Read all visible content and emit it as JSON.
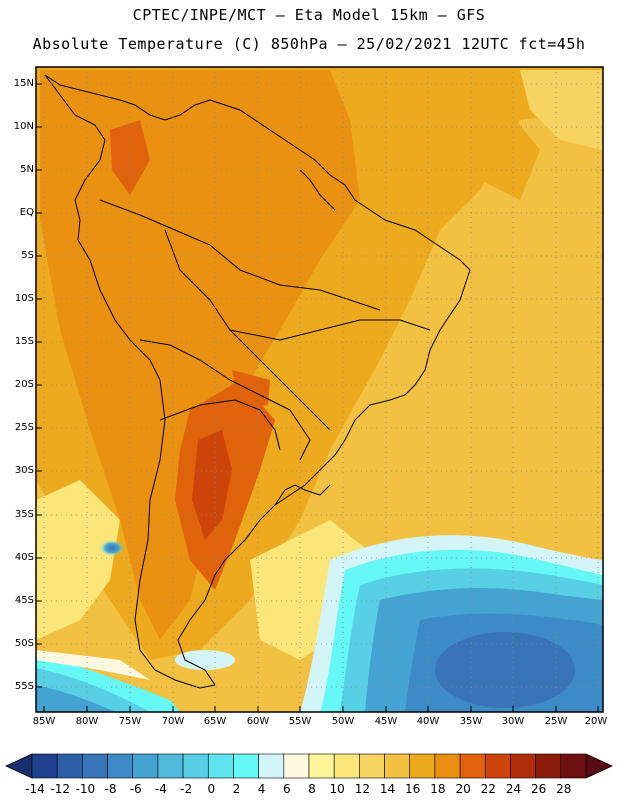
{
  "header": {
    "line1": "CPTEC/INPE/MCT –  Eta Model 15km – GFS",
    "line2": "Absolute Temperature (C) 850hPa – 25/02/2021 12UTC fct=45h"
  },
  "map": {
    "lat_labels": [
      "15N",
      "10N",
      "5N",
      "EQ",
      "5S",
      "10S",
      "15S",
      "20S",
      "25S",
      "30S",
      "35S",
      "40S",
      "45S",
      "50S",
      "55S"
    ],
    "lon_labels": [
      "85W",
      "80W",
      "75W",
      "70W",
      "65W",
      "60W",
      "55W",
      "50W",
      "45W",
      "40W",
      "35W",
      "30W",
      "25W",
      "20W"
    ]
  },
  "colorbar": {
    "labels": [
      "-14",
      "-12",
      "-10",
      "-8",
      "-6",
      "-4",
      "-2",
      "0",
      "2",
      "4",
      "6",
      "8",
      "10",
      "12",
      "14",
      "16",
      "18",
      "20",
      "22",
      "24",
      "26",
      "28"
    ],
    "colors": [
      "#1f3f8f",
      "#2c5ea8",
      "#3a74b8",
      "#3d8bc6",
      "#44a3d2",
      "#4fbadc",
      "#57d0e6",
      "#5ee4ee",
      "#66f7f7",
      "#d4f5f8",
      "#fff8e1",
      "#fff59a",
      "#fbe67a",
      "#f7d462",
      "#f2c142",
      "#eeaa1e",
      "#ea8d10",
      "#e0620a",
      "#cc440a",
      "#b02e08",
      "#8c1c0a",
      "#6e1010"
    ]
  }
}
